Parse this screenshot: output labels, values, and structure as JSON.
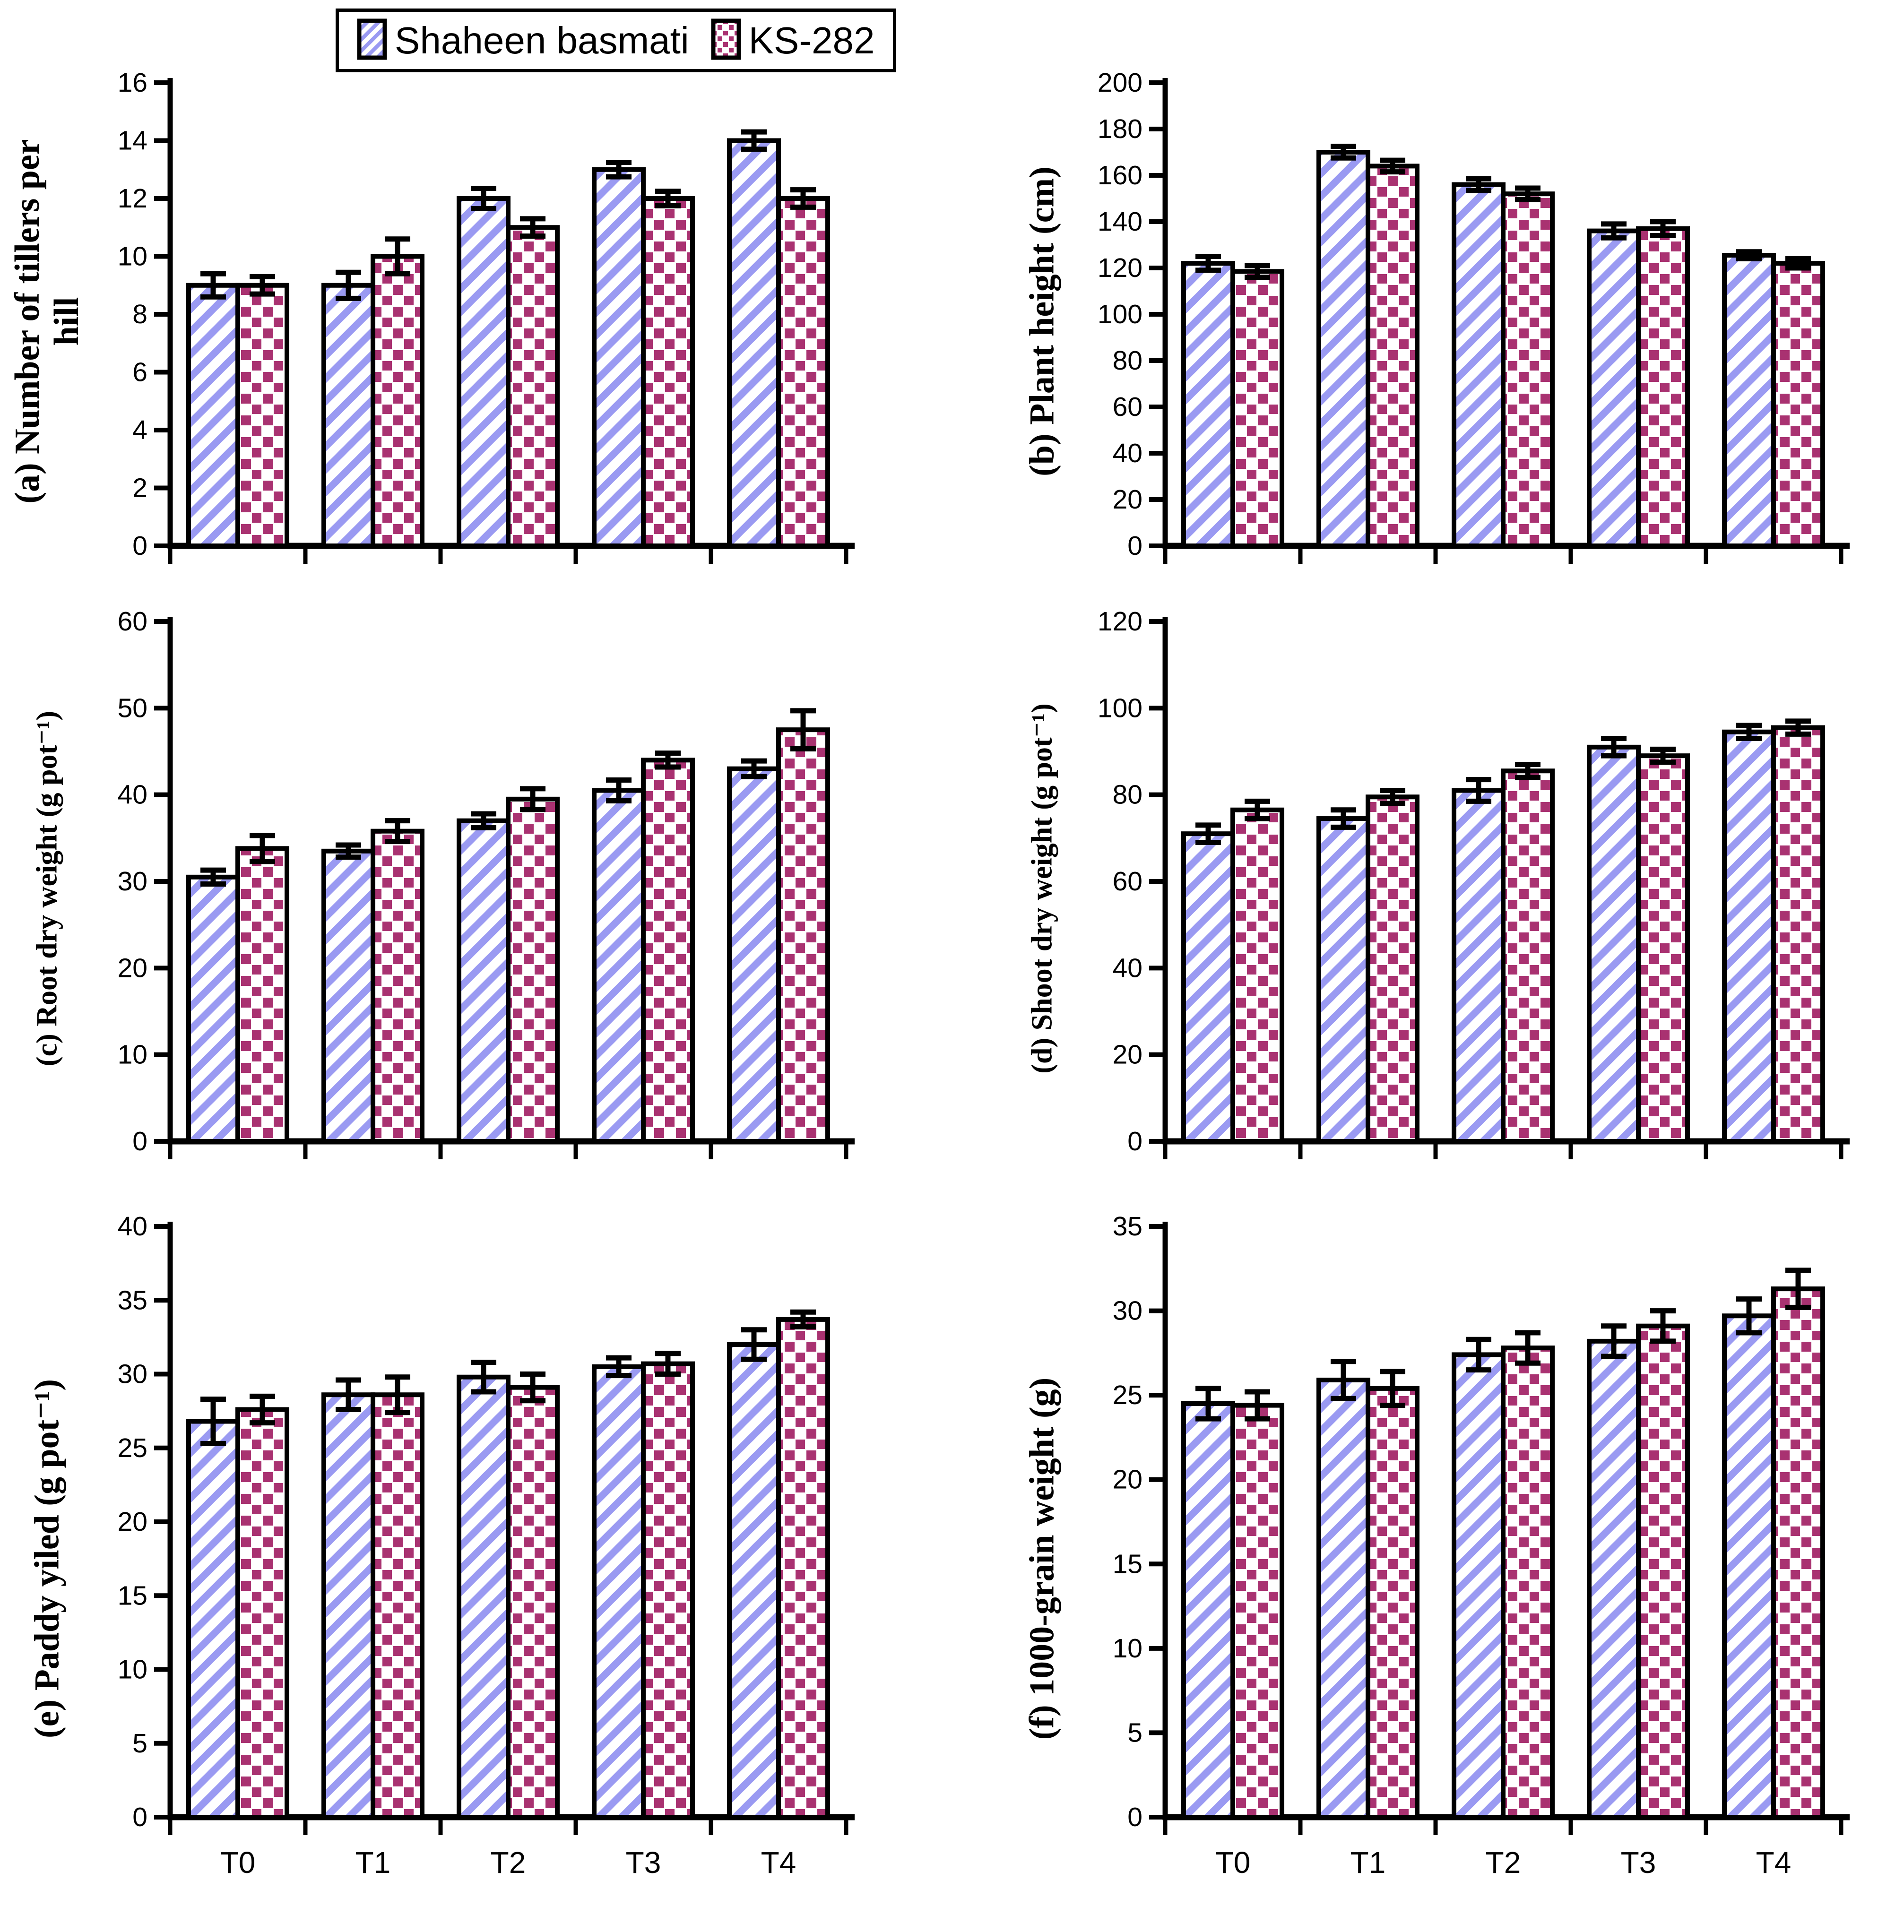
{
  "legend": {
    "items": [
      {
        "label": "Shaheen basmati",
        "pattern": "blue-diagonal-stripes"
      },
      {
        "label": "KS-282",
        "pattern": "red-square-dots"
      }
    ]
  },
  "colors": {
    "stripe_blue": "#9a9af2",
    "dot_red": "#a93271",
    "outline": "#000000",
    "background": "#ffffff"
  },
  "chart_data": [
    {
      "id": "a",
      "type": "bar",
      "title": "(a) Number of tillers per\nhill",
      "ylim": [
        0,
        16
      ],
      "ystep": 2,
      "categories": [
        "T0",
        "T1",
        "T2",
        "T3",
        "T4"
      ],
      "show_x_labels": false,
      "grid": false,
      "legend_position": "top",
      "series": [
        {
          "name": "Shaheen basmati",
          "values": [
            9,
            9,
            12,
            13,
            14
          ],
          "errors": [
            0.4,
            0.45,
            0.35,
            0.25,
            0.3
          ]
        },
        {
          "name": "KS-282",
          "values": [
            9,
            10,
            11,
            12,
            12
          ],
          "errors": [
            0.3,
            0.6,
            0.3,
            0.25,
            0.3
          ]
        }
      ]
    },
    {
      "id": "b",
      "type": "bar",
      "title": "(b) Plant height (cm)",
      "ylim": [
        0,
        200
      ],
      "ystep": 20,
      "categories": [
        "T0",
        "T1",
        "T2",
        "T3",
        "T4"
      ],
      "show_x_labels": false,
      "grid": false,
      "series": [
        {
          "name": "Shaheen basmati",
          "values": [
            122,
            170,
            156,
            136,
            125.5
          ],
          "errors": [
            3,
            2.5,
            2.5,
            3,
            1.5
          ]
        },
        {
          "name": "KS-282",
          "values": [
            118.5,
            164,
            152,
            137,
            122
          ],
          "errors": [
            2.5,
            2.5,
            2.5,
            3,
            2
          ]
        }
      ]
    },
    {
      "id": "c",
      "type": "bar",
      "title": "(c) Root dry weight (g pot⁻¹)",
      "ylim": [
        0,
        60
      ],
      "ystep": 10,
      "categories": [
        "T0",
        "T1",
        "T2",
        "T3",
        "T4"
      ],
      "show_x_labels": false,
      "grid": false,
      "series": [
        {
          "name": "Shaheen basmati",
          "values": [
            30.5,
            33.5,
            37,
            40.5,
            43
          ],
          "errors": [
            0.8,
            0.7,
            0.8,
            1.2,
            0.9
          ]
        },
        {
          "name": "KS-282",
          "values": [
            33.8,
            35.8,
            39.5,
            44,
            47.5
          ],
          "errors": [
            1.5,
            1.2,
            1.2,
            0.8,
            2.2
          ]
        }
      ]
    },
    {
      "id": "d",
      "type": "bar",
      "title": "(d) Shoot dry weight (g pot⁻¹)",
      "ylim": [
        0,
        120
      ],
      "ystep": 20,
      "categories": [
        "T0",
        "T1",
        "T2",
        "T3",
        "T4"
      ],
      "show_x_labels": false,
      "grid": false,
      "series": [
        {
          "name": "Shaheen basmati",
          "values": [
            71,
            74.5,
            81,
            91,
            94.5
          ],
          "errors": [
            2,
            2,
            2.5,
            2,
            1.5
          ]
        },
        {
          "name": "KS-282",
          "values": [
            76.5,
            79.5,
            85.5,
            89,
            95.5
          ],
          "errors": [
            2,
            1.5,
            1.5,
            1.5,
            1.5
          ]
        }
      ]
    },
    {
      "id": "e",
      "type": "bar",
      "title": "(e) Paddy yiled (g pot⁻¹)",
      "ylim": [
        0,
        40
      ],
      "ystep": 5,
      "categories": [
        "T0",
        "T1",
        "T2",
        "T3",
        "T4"
      ],
      "show_x_labels": true,
      "grid": false,
      "series": [
        {
          "name": "Shaheen basmati",
          "values": [
            26.8,
            28.6,
            29.8,
            30.5,
            32
          ],
          "errors": [
            1.5,
            1.0,
            1.0,
            0.6,
            1.0
          ]
        },
        {
          "name": "KS-282",
          "values": [
            27.6,
            28.6,
            29.1,
            30.7,
            33.7
          ],
          "errors": [
            0.9,
            1.2,
            0.9,
            0.7,
            0.5
          ]
        }
      ]
    },
    {
      "id": "f",
      "type": "bar",
      "title": "(f) 1000-grain weight (g)",
      "ylim": [
        0,
        35
      ],
      "ystep": 5,
      "categories": [
        "T0",
        "T1",
        "T2",
        "T3",
        "T4"
      ],
      "show_x_labels": true,
      "grid": false,
      "series": [
        {
          "name": "Shaheen basmati",
          "values": [
            24.5,
            25.9,
            27.4,
            28.2,
            29.7
          ],
          "errors": [
            0.9,
            1.1,
            0.9,
            0.9,
            1.0
          ]
        },
        {
          "name": "KS-282",
          "values": [
            24.4,
            25.4,
            27.8,
            29.1,
            31.3
          ],
          "errors": [
            0.8,
            1.0,
            0.9,
            0.9,
            1.1
          ]
        }
      ]
    }
  ]
}
